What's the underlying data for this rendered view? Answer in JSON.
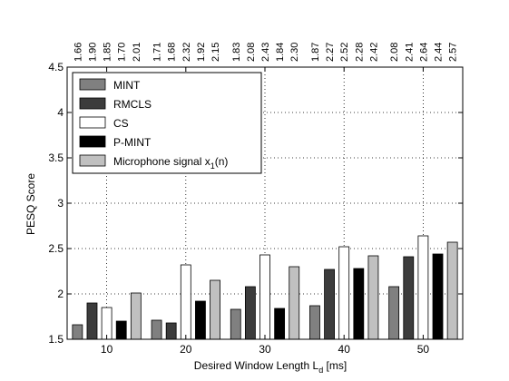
{
  "chart_data": {
    "type": "bar",
    "title": "",
    "xlabel": "Desired Window Length L",
    "xlabel_subscript": "d",
    "xlabel_unit": " [ms]",
    "ylabel": "PESQ Score",
    "ylim": [
      1.5,
      4.5
    ],
    "yticks": [
      "1.5",
      "2",
      "2.5",
      "3",
      "3.5",
      "4",
      "4.5"
    ],
    "categories": [
      "10",
      "20",
      "30",
      "40",
      "50"
    ],
    "grid": "dotted",
    "legend_position": "top-left",
    "series": [
      {
        "name": "MINT",
        "color": "#808080",
        "values": [
          1.66,
          1.71,
          1.83,
          1.87,
          2.08
        ],
        "labels": [
          "1.66",
          "1.71",
          "1.83",
          "1.87",
          "2.08"
        ]
      },
      {
        "name": "RMCLS",
        "color": "#3c3c3c",
        "values": [
          1.9,
          1.68,
          2.08,
          2.27,
          2.41
        ],
        "labels": [
          "1.90",
          "1.68",
          "2.08",
          "2.27",
          "2.41"
        ]
      },
      {
        "name": "CS",
        "color": "#ffffff",
        "values": [
          1.85,
          2.32,
          2.43,
          2.52,
          2.64
        ],
        "labels": [
          "1.85",
          "2.32",
          "2.43",
          "2.52",
          "2.64"
        ]
      },
      {
        "name": "P-MINT",
        "color": "#000000",
        "values": [
          1.7,
          1.92,
          1.84,
          2.28,
          2.44
        ],
        "labels": [
          "1.70",
          "1.92",
          "1.84",
          "2.28",
          "2.44"
        ]
      },
      {
        "name": "Microphone signal x",
        "name_subscript": "1",
        "name_suffix": "(n)",
        "color": "#c0c0c0",
        "values": [
          2.01,
          2.15,
          2.3,
          2.42,
          2.57
        ],
        "labels": [
          "2.01",
          "2.15",
          "2.30",
          "2.42",
          "2.57"
        ]
      }
    ]
  }
}
